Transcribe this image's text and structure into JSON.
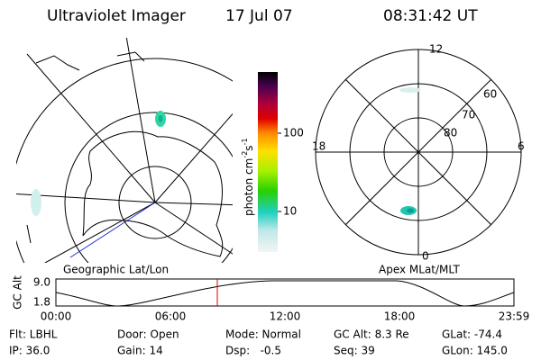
{
  "header": {
    "instrument": "Ultraviolet Imager",
    "date": "17 Jul 07",
    "time": "08:31:42 UT"
  },
  "left_panel": {
    "label": "Geographic Lat/Lon"
  },
  "colorbar": {
    "label_parts": [
      "photon cm",
      "-2",
      "s",
      "-1"
    ],
    "ticks": [
      "100",
      "10"
    ]
  },
  "right_panel": {
    "label": "Apex MLat/MLT",
    "mlt_labels": [
      "12",
      "18",
      "6",
      "0"
    ],
    "lat_labels": [
      "60",
      "70",
      "80"
    ]
  },
  "timeline": {
    "ylabel": "GC Alt",
    "yticks": [
      "9.0",
      "1.8"
    ],
    "xticks": [
      "00:00",
      "06:00",
      "12:00",
      "18:00",
      "23:59"
    ]
  },
  "info": {
    "rows": [
      [
        "Flt: LBHL",
        "Door: Open",
        "Mode: Normal",
        "GC Alt: 8.3 Re",
        "GLat: -74.4"
      ],
      [
        "IP: 36.0",
        "Gain: 14",
        "Dsp:   -0.5",
        "Seq: 39",
        "GLon: 145.0"
      ]
    ]
  }
}
